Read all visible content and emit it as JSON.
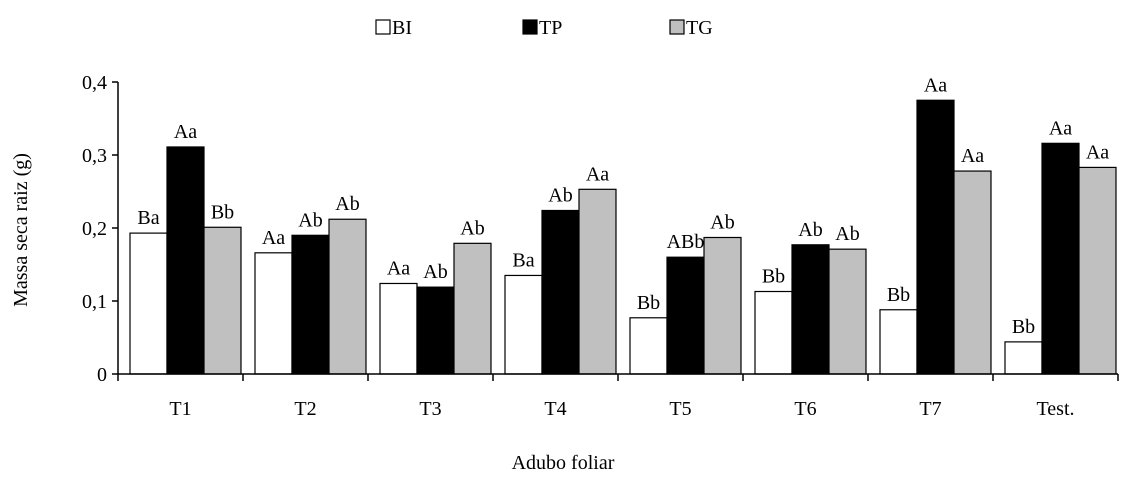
{
  "chart_data": {
    "type": "bar",
    "title": "",
    "xlabel": "Adubo foliar",
    "ylabel": "Massa seca raiz (g)",
    "categories": [
      "T1",
      "T2",
      "T3",
      "T4",
      "T5",
      "T6",
      "T7",
      "Test."
    ],
    "ylim": [
      0,
      0.4
    ],
    "yticks": [
      0,
      0.1,
      0.2,
      0.3,
      0.4
    ],
    "ytick_labels": [
      "0",
      "0,1",
      "0,2",
      "0,3",
      "0,4"
    ],
    "grid": false,
    "legend_position": "top-center",
    "series": [
      {
        "name": "BI",
        "color": "#ffffff",
        "values": [
          0.193,
          0.166,
          0.124,
          0.135,
          0.077,
          0.113,
          0.088,
          0.044
        ],
        "labels": [
          "Ba",
          "Aa",
          "Aa",
          "Ba",
          "Bb",
          "Bb",
          "Bb",
          "Bb"
        ]
      },
      {
        "name": "TP",
        "color": "#000000",
        "values": [
          0.311,
          0.19,
          0.119,
          0.224,
          0.16,
          0.177,
          0.375,
          0.316
        ],
        "labels": [
          "Aa",
          "Ab",
          "Ab",
          "Ab",
          "ABb",
          "Ab",
          "Aa",
          "Aa"
        ]
      },
      {
        "name": "TG",
        "color": "#c0c0c0",
        "values": [
          0.201,
          0.212,
          0.179,
          0.253,
          0.187,
          0.171,
          0.278,
          0.283
        ],
        "labels": [
          "Bb",
          "Ab",
          "Ab",
          "Aa",
          "Ab",
          "Ab",
          "Aa",
          "Aa"
        ]
      }
    ]
  }
}
